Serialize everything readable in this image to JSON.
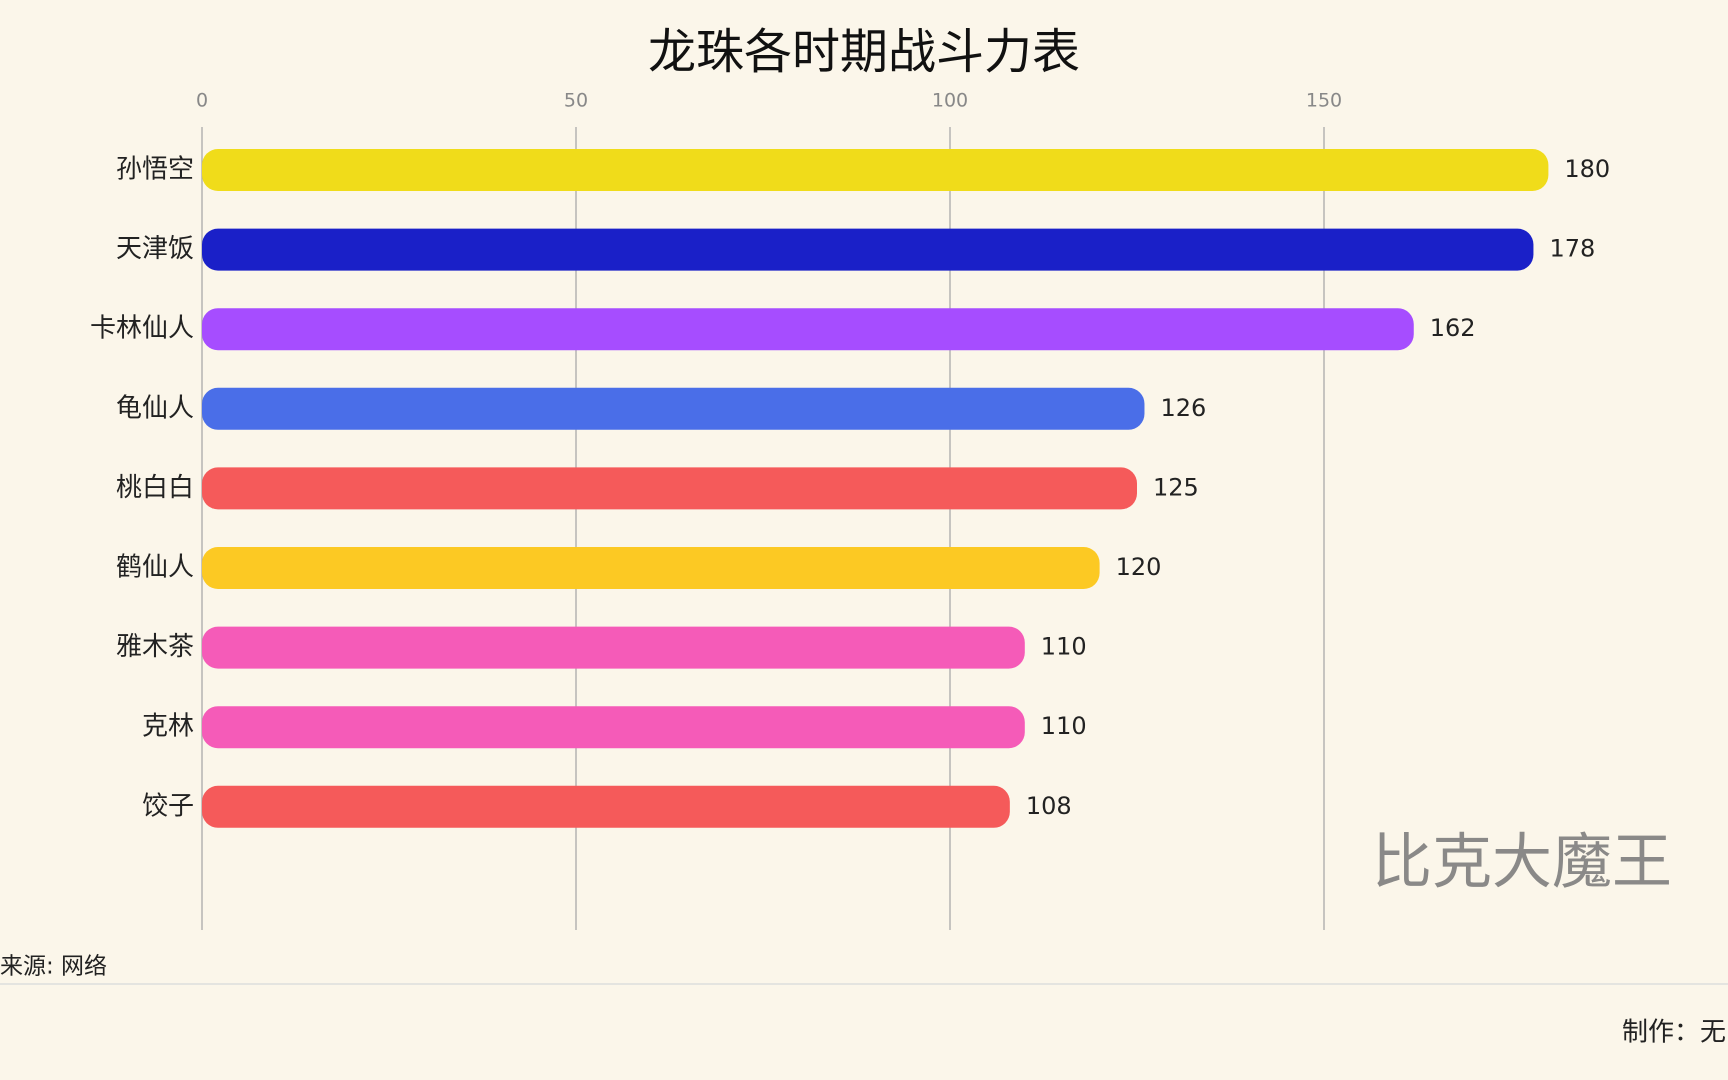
{
  "chart_data": {
    "type": "bar",
    "orientation": "horizontal",
    "title": "龙珠各时期战斗力表",
    "categories": [
      "孙悟空",
      "天津饭",
      "卡林仙人",
      "龟仙人",
      "桃白白",
      "鹤仙人",
      "雅木茶",
      "克林",
      "饺子"
    ],
    "values": [
      180,
      178,
      162,
      126,
      125,
      120,
      110,
      110,
      108
    ],
    "colors": [
      "#f0dc1a",
      "#1a20c8",
      "#a64dff",
      "#4a6ee8",
      "#f55a5a",
      "#fcc923",
      "#f55bb8",
      "#f55bb8",
      "#f55a5a"
    ],
    "xlim": [
      0,
      200
    ],
    "xticks": [
      0,
      50,
      100,
      150
    ],
    "grid": true,
    "annotation": "比克大魔王",
    "source": "来源: 网络",
    "credit": "制作：无"
  }
}
